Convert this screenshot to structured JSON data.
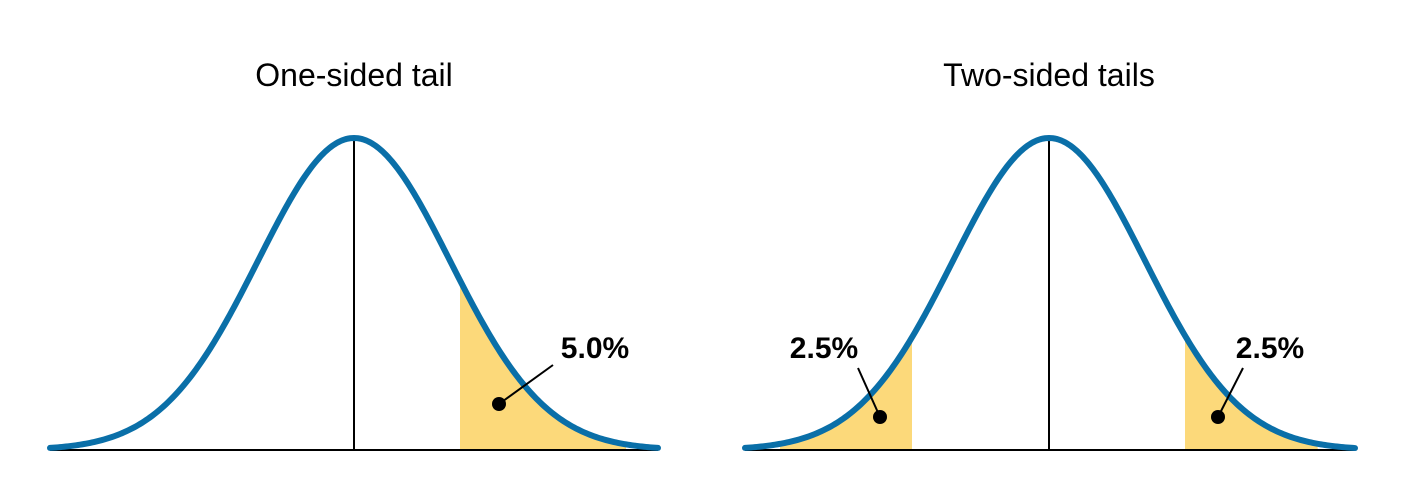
{
  "panels": [
    {
      "title": "One-sided tail",
      "labels": [
        "5.0%"
      ]
    },
    {
      "title": "Two-sided tails",
      "labels": [
        "2.5%",
        "2.5%"
      ]
    }
  ]
}
